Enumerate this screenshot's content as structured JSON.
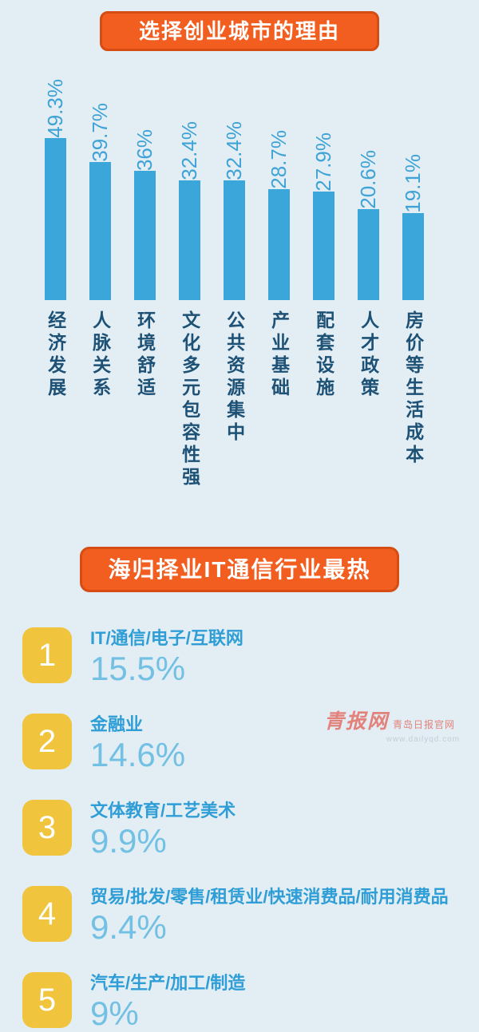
{
  "page": {
    "background": "#e3edf4",
    "accent_orange": "#f15e1f",
    "bar_blue": "#3aa6d9",
    "navy": "#1d5175",
    "badge_yellow": "#f0c43c",
    "title_blue": "#2f9ed6",
    "value_blue": "#72c0e3"
  },
  "sections": {
    "city_reasons": {
      "header": "选择创业城市的理由"
    },
    "industries": {
      "header": "海归择业IT通信行业最热",
      "items": [
        {
          "rank": "1",
          "title": "IT/通信/电子/互联网",
          "value": "15.5%"
        },
        {
          "rank": "2",
          "title": "金融业",
          "value": "14.6%"
        },
        {
          "rank": "3",
          "title": "文体教育/工艺美术",
          "value": "9.9%"
        },
        {
          "rank": "4",
          "title": "贸易/批发/零售/租赁业/快速消费品/耐用消费品",
          "value": "9.4%"
        },
        {
          "rank": "5",
          "title": "汽车/生产/加工/制造",
          "value": "9%"
        }
      ]
    }
  },
  "chart_data": [
    {
      "type": "bar",
      "title": "选择创业城市的理由",
      "categories": [
        "经济发展",
        "人脉关系",
        "环境舒适",
        "文化多元包容性强",
        "公共资源集中",
        "产业基础",
        "配套设施",
        "人才政策",
        "房价等生活成本"
      ],
      "values": [
        49.3,
        39.7,
        36,
        32.4,
        32.4,
        28.7,
        27.9,
        20.6,
        19.1
      ],
      "labels": [
        "49.3%",
        "39.7%",
        "36%",
        "32.4%",
        "32.4%",
        "28.7%",
        "27.9%",
        "20.6%",
        "19.1%"
      ],
      "xlabel": "",
      "ylabel": "",
      "ylim": [
        0,
        50
      ],
      "grid": false,
      "legend": "none",
      "bar_color": "#3aa6d9",
      "value_label_rotation": 90,
      "category_text_direction": "vertical"
    },
    {
      "type": "table",
      "title": "海归择业IT通信行业最热",
      "columns": [
        "rank",
        "industry",
        "share"
      ],
      "rows": [
        [
          "1",
          "IT/通信/电子/互联网",
          "15.5%"
        ],
        [
          "2",
          "金融业",
          "14.6%"
        ],
        [
          "3",
          "文体教育/工艺美术",
          "9.9%"
        ],
        [
          "4",
          "贸易/批发/零售/租赁业/快速消费品/耐用消费品",
          "9.4%"
        ],
        [
          "5",
          "汽车/生产/加工/制造",
          "9%"
        ]
      ]
    }
  ],
  "watermark": {
    "brand": "青报网",
    "sub": "青岛日报官网",
    "url": "www.dailyqd.com"
  }
}
